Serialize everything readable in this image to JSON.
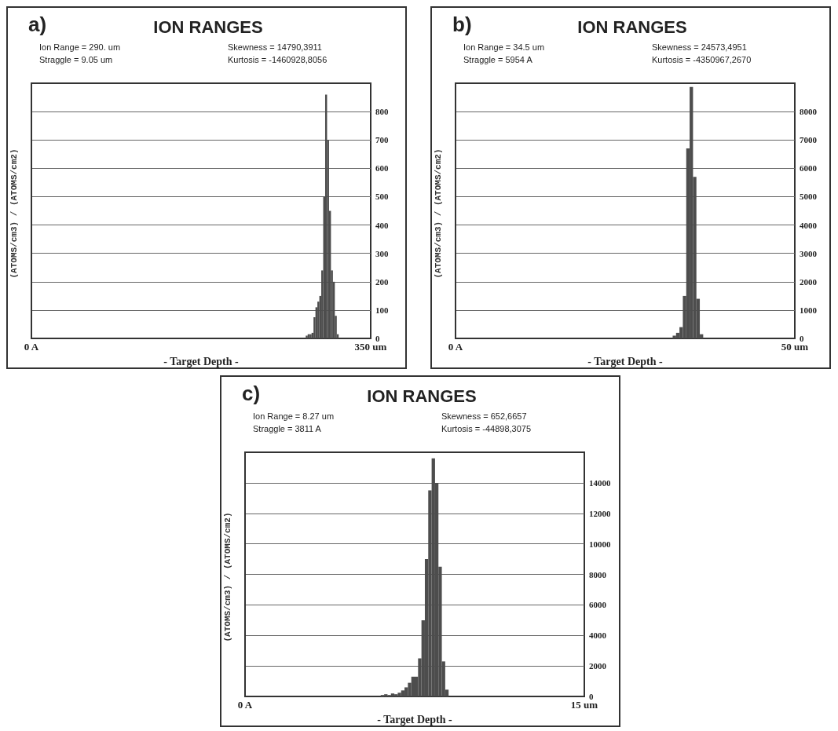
{
  "chart_data": [
    {
      "type": "histogram",
      "title": "ION RANGES",
      "xlabel": "- Target Depth -",
      "ylabel": "(ATOMS/cm3) / (ATOMS/cm2)",
      "annotations": [
        "a)",
        "Ion Range = 290. um",
        "Skewness = 14790,3911",
        "Straggle = 9.05 um",
        "Kurtosis = -1460928,8056"
      ],
      "bins": [
        283,
        285,
        287,
        289,
        291,
        293,
        295,
        297,
        299,
        301,
        303,
        305,
        307,
        309,
        311,
        313,
        315,
        317
      ],
      "values": [
        10,
        15,
        15,
        20,
        75,
        110,
        130,
        150,
        240,
        500,
        860,
        700,
        450,
        240,
        200,
        80,
        15
      ],
      "color": "#4d4d4d",
      "xlim": [
        0,
        350
      ],
      "xticks": [
        {
          "value": 0,
          "label": "0 A"
        },
        {
          "value": 350,
          "label": "350 um"
        }
      ],
      "ylim": [
        0,
        900
      ],
      "yticks": [
        0,
        100,
        200,
        300,
        400,
        500,
        600,
        700,
        800
      ],
      "grid": "y"
    },
    {
      "type": "histogram",
      "title": "ION RANGES",
      "xlabel": "- Target Depth -",
      "ylabel": "(ATOMS/cm3) / (ATOMS/cm2)",
      "annotations": [
        "b)",
        "Ion Range = 34.5 um",
        "Skewness = 24573,4951",
        "Straggle = 5954 A",
        "Kurtosis = -4350967,2670"
      ],
      "bins": [
        32,
        32.5,
        33,
        33.5,
        34,
        34.5,
        35,
        35.5,
        36,
        36.5
      ],
      "values": [
        100,
        200,
        400,
        1500,
        6700,
        8870,
        5700,
        1400,
        150
      ],
      "color": "#4d4d4d",
      "xlim": [
        0,
        50
      ],
      "xticks": [
        {
          "value": 0,
          "label": "0 A"
        },
        {
          "value": 50,
          "label": "50 um"
        }
      ],
      "ylim": [
        0,
        9000
      ],
      "yticks": [
        0,
        1000,
        2000,
        3000,
        4000,
        5000,
        6000,
        7000,
        8000
      ],
      "grid": "y"
    },
    {
      "type": "histogram",
      "title": "ION RANGES",
      "xlabel": "- Target Depth -",
      "ylabel": "(ATOMS/cm3) / (ATOMS/cm2)",
      "annotations": [
        "c)",
        "Ion Range = 8.27 um",
        "Skewness = 652,6657",
        "Straggle = 3811 A",
        "Kurtosis = -44898,3075"
      ],
      "bins": [
        6.0,
        6.15,
        6.3,
        6.45,
        6.6,
        6.75,
        6.9,
        7.05,
        7.2,
        7.35,
        7.5,
        7.65,
        7.8,
        7.95,
        8.1,
        8.25,
        8.4,
        8.55,
        8.7,
        8.85,
        9.0
      ],
      "values": [
        100,
        150,
        100,
        200,
        150,
        250,
        400,
        600,
        900,
        1300,
        1300,
        2500,
        5000,
        9000,
        13500,
        15600,
        14000,
        8500,
        2300,
        450
      ],
      "color": "#4d4d4d",
      "xlim": [
        0,
        15
      ],
      "xticks": [
        {
          "value": 0,
          "label": "0 A"
        },
        {
          "value": 15,
          "label": "15 um"
        }
      ],
      "ylim": [
        0,
        16000
      ],
      "yticks": [
        0,
        2000,
        4000,
        6000,
        8000,
        10000,
        12000,
        14000
      ],
      "grid": "y"
    }
  ]
}
